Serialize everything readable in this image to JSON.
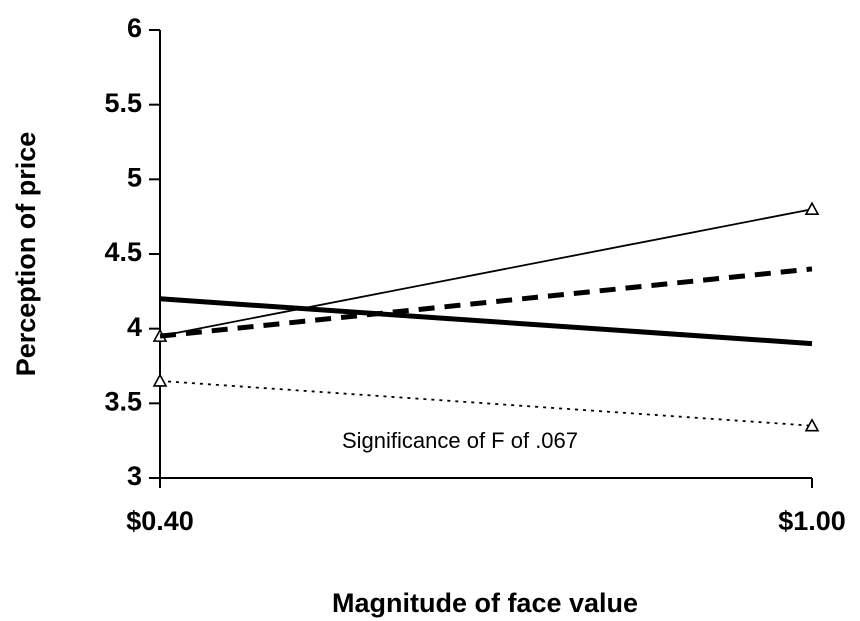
{
  "chart_data": {
    "type": "line",
    "xlabel": "Magnitude of face value",
    "ylabel": "Perception of price",
    "annotation": "Significance of F of .067",
    "categories": [
      "$0.40",
      "$1.00"
    ],
    "ylim": [
      3,
      6
    ],
    "yticks": [
      3,
      3.5,
      4,
      4.5,
      5,
      5.5,
      6
    ],
    "series": [
      {
        "color": "#000000",
        "dash": "solid",
        "weight": "thin",
        "marker": "triangle",
        "values": [
          3.95,
          4.8
        ]
      },
      {
        "color": "#000000",
        "dash": "dashed",
        "weight": "thick",
        "marker": "none",
        "values": [
          3.95,
          4.4
        ]
      },
      {
        "color": "#000000",
        "dash": "solid",
        "weight": "thick",
        "marker": "none",
        "values": [
          4.2,
          3.9
        ]
      },
      {
        "color": "#000000",
        "dash": "dotted",
        "weight": "thin",
        "marker": "triangle",
        "values": [
          3.65,
          3.35
        ]
      }
    ]
  }
}
